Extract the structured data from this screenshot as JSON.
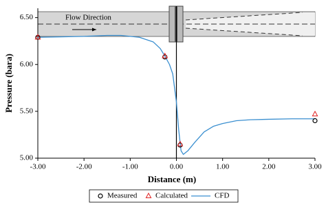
{
  "chart_data": {
    "type": "scatter",
    "annotation": "Flow Direction",
    "xlabel": "Distance (m)",
    "ylabel": "Pressure (bara)",
    "xlim": [
      -3,
      3
    ],
    "ylim": [
      5.0,
      6.6
    ],
    "xticks": [
      {
        "value": -3,
        "label": "-3.00"
      },
      {
        "value": -2,
        "label": "-2.00"
      },
      {
        "value": -1,
        "label": "-1.00"
      },
      {
        "value": 0,
        "label": "0.00"
      },
      {
        "value": 1,
        "label": "1.00"
      },
      {
        "value": 2,
        "label": "2.00"
      },
      {
        "value": 3,
        "label": "3.00"
      }
    ],
    "yticks": [
      {
        "value": 5,
        "label": "5.00"
      },
      {
        "value": 5.5,
        "label": "5.50"
      },
      {
        "value": 6,
        "label": "6.00"
      },
      {
        "value": 6.5,
        "label": "6.50"
      }
    ],
    "legend": "bottom",
    "series": [
      {
        "name": "Measured",
        "mode": "circle",
        "color": "#000000",
        "x": [
          -3,
          -0.25,
          0.08,
          3
        ],
        "values": [
          6.29,
          6.08,
          5.14,
          5.4
        ]
      },
      {
        "name": "Calculated",
        "mode": "triangle",
        "color": "#e02020",
        "x": [
          -3,
          -0.25,
          0.08,
          3
        ],
        "values": [
          6.29,
          6.09,
          5.15,
          5.47
        ]
      },
      {
        "name": "CFD",
        "mode": "line",
        "color": "#3a8fd0",
        "x": [
          -3,
          -2.5,
          -2,
          -1.5,
          -1.2,
          -0.8,
          -0.5,
          -0.35,
          -0.25,
          -0.15,
          -0.08,
          0,
          0.05,
          0.1,
          0.15,
          0.25,
          0.4,
          0.6,
          0.8,
          1.0,
          1.3,
          1.6,
          2.0,
          2.5,
          3
        ],
        "values": [
          6.29,
          6.295,
          6.3,
          6.31,
          6.31,
          6.29,
          6.24,
          6.17,
          6.09,
          6.0,
          5.9,
          5.6,
          5.3,
          5.08,
          5.04,
          5.08,
          5.17,
          5.28,
          5.34,
          5.37,
          5.4,
          5.41,
          5.415,
          5.42,
          5.42
        ]
      }
    ]
  }
}
